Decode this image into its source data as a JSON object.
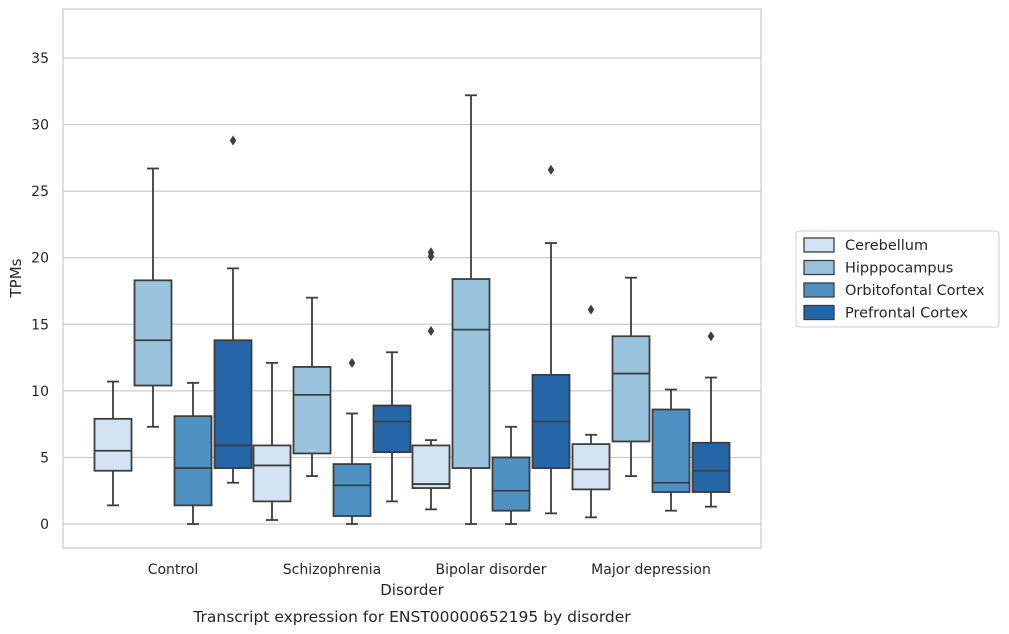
{
  "caption": "Transcript expression for ENST00000652195 by disorder",
  "chart_data": {
    "type": "box",
    "title": "",
    "xlabel": "Disorder",
    "ylabel": "TPMs",
    "ylim": [
      -1.8,
      38.5
    ],
    "yticks": [
      0,
      5,
      10,
      15,
      20,
      25,
      30,
      35
    ],
    "grid": "horizontal",
    "legend_position": "right",
    "categories": [
      "Control",
      "Schizophrenia",
      "Bipolar disorder",
      "Major depression"
    ],
    "series": [
      {
        "name": "Cerebellum",
        "color": "#d4e3f3",
        "boxes": [
          {
            "whislo": 1.4,
            "q1": 4.0,
            "med": 5.5,
            "q3": 7.9,
            "whishi": 10.7,
            "fliers": []
          },
          {
            "whislo": 0.3,
            "q1": 1.7,
            "med": 4.4,
            "q3": 5.9,
            "whishi": 12.1,
            "fliers": []
          },
          {
            "whislo": 1.1,
            "q1": 2.7,
            "med": 3.0,
            "q3": 5.9,
            "whishi": 6.3,
            "fliers": [
              14.5,
              20.1,
              20.4
            ]
          },
          {
            "whislo": 0.5,
            "q1": 2.6,
            "med": 4.1,
            "q3": 6.0,
            "whishi": 6.7,
            "fliers": [
              16.1
            ]
          }
        ]
      },
      {
        "name": "Hipppocampus",
        "color": "#9ac4de",
        "boxes": [
          {
            "whislo": 7.3,
            "q1": 10.4,
            "med": 13.8,
            "q3": 18.3,
            "whishi": 26.7,
            "fliers": []
          },
          {
            "whislo": 3.6,
            "q1": 5.3,
            "med": 9.7,
            "q3": 11.8,
            "whishi": 17.0,
            "fliers": []
          },
          {
            "whislo": 0.0,
            "q1": 4.2,
            "med": 14.6,
            "q3": 18.4,
            "whishi": 32.2,
            "fliers": []
          },
          {
            "whislo": 3.6,
            "q1": 6.2,
            "med": 11.3,
            "q3": 14.1,
            "whishi": 18.5,
            "fliers": []
          }
        ]
      },
      {
        "name": "Orbitofontal Cortex",
        "color": "#4f91c2",
        "boxes": [
          {
            "whislo": 0.0,
            "q1": 1.4,
            "med": 4.2,
            "q3": 8.1,
            "whishi": 10.6,
            "fliers": []
          },
          {
            "whislo": 0.0,
            "q1": 0.6,
            "med": 2.9,
            "q3": 4.5,
            "whishi": 8.3,
            "fliers": [
              12.1
            ]
          },
          {
            "whislo": 0.0,
            "q1": 1.0,
            "med": 2.5,
            "q3": 5.0,
            "whishi": 7.3,
            "fliers": []
          },
          {
            "whislo": 1.0,
            "q1": 2.4,
            "med": 3.1,
            "q3": 8.6,
            "whishi": 10.1,
            "fliers": []
          }
        ]
      },
      {
        "name": "Prefrontal Cortex",
        "color": "#2566a8",
        "boxes": [
          {
            "whislo": 3.1,
            "q1": 4.2,
            "med": 5.9,
            "q3": 13.8,
            "whishi": 19.2,
            "fliers": [
              28.8
            ]
          },
          {
            "whislo": 1.7,
            "q1": 5.4,
            "med": 7.7,
            "q3": 8.9,
            "whishi": 12.9,
            "fliers": []
          },
          {
            "whislo": 0.8,
            "q1": 4.2,
            "med": 7.7,
            "q3": 11.2,
            "whishi": 21.1,
            "fliers": [
              26.6
            ]
          },
          {
            "whislo": 1.3,
            "q1": 2.4,
            "med": 4.0,
            "q3": 6.1,
            "whishi": 11.0,
            "fliers": [
              14.1
            ]
          }
        ]
      }
    ]
  }
}
